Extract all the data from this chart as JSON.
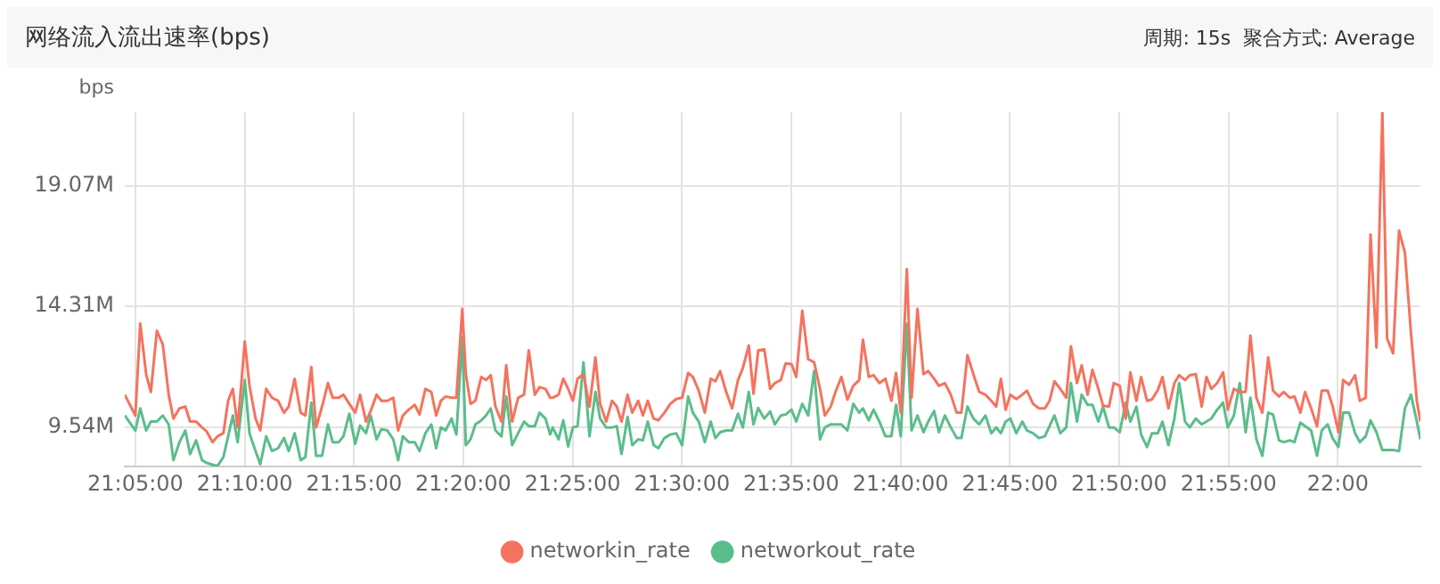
{
  "chart_data": {
    "type": "line",
    "title": "网络流入流出速率(bps)",
    "annotations": [
      "周期: 15s  聚合方式: Average"
    ],
    "ylabel": "bps",
    "x": [
      21.0752,
      21.0833,
      21.087,
      21.0915,
      21.0951,
      21.0997,
      21.1042,
      21.1087,
      21.1123,
      21.1169,
      21.1214,
      21.125,
      21.1296,
      21.1341,
      21.1377,
      21.1422,
      21.1459,
      21.1504,
      21.154,
      21.1576,
      21.1613,
      21.1667,
      21.1703,
      21.1749,
      21.1785,
      21.183,
      21.1875,
      21.1921,
      21.1966,
      21.2002,
      21.2047,
      21.2093,
      21.2129,
      21.2174,
      21.2211,
      21.2256,
      21.2301,
      21.2337,
      21.2383,
      21.2419,
      21.2464,
      21.2509,
      21.2546,
      21.2591,
      21.2627,
      21.2672,
      21.2709,
      21.2754,
      21.2799,
      21.2836,
      21.2872,
      21.2917,
      21.2963,
      21.2999,
      21.3044,
      21.3089,
      21.3126,
      21.3162,
      21.3198,
      21.3243,
      21.328,
      21.3325,
      21.3352,
      21.3388,
      21.3425,
      21.347,
      21.3506,
      21.3542,
      21.3578,
      21.3624,
      21.366,
      21.3705,
      21.3751,
      21.3796,
      21.3832,
      21.3878,
      21.3914,
      21.3959,
      21.3995,
      21.4014,
      21.4059,
      21.4095,
      21.4132,
      21.4168,
      21.4204,
      21.4249,
      21.4295,
      21.434,
      21.4376,
      21.4422,
      21.4467,
      21.4503,
      21.4539,
      21.4585,
      21.4621,
      21.4666,
      21.4702,
      21.4739,
      21.4784,
      21.482,
      21.4866,
      21.4911,
      21.4956,
      21.5001,
      21.5047,
      21.5083,
      21.5128,
      21.5174,
      21.5219,
      21.5255,
      21.5291,
      21.5337,
      21.5382,
      21.5427,
      21.5464,
      21.5509,
      21.5545,
      21.5581,
      21.5627,
      21.5672,
      21.5708,
      21.5753,
      21.579,
      21.5835,
      21.5871,
      21.5917,
      21.5962,
      21.6007,
      21.6052,
      21.6089,
      21.6134,
      21.617,
      21.6215,
      21.6261,
      21.6306,
      21.6351,
      21.6379,
      21.6424,
      21.646,
      21.6505,
      21.6551,
      21.6596,
      21.6632,
      21.6668,
      21.6714,
      21.675,
      21.6795,
      21.6841,
      21.6877,
      21.6922,
      21.6958,
      21.7004,
      21.7049,
      21.7094,
      21.713,
      21.7176,
      21.7221,
      21.7266,
      21.7313,
      21.7358,
      21.7395,
      21.7431,
      21.7467,
      21.7503,
      21.7549,
      21.7594,
      21.763,
      21.7676,
      21.7721,
      21.7766,
      21.7802,
      21.7839,
      21.7884,
      21.7929,
      21.7965,
      21.8011,
      21.8047,
      21.8092,
      21.8129,
      21.8174,
      21.821,
      21.8255,
      21.8292,
      21.8337,
      21.8382,
      21.8418,
      21.8464,
      21.85,
      21.8545,
      21.8582,
      21.8627,
      21.8663,
      21.8708,
      21.8754,
      21.879,
      21.8835,
      21.8871,
      21.8917,
      21.8962,
      21.8998,
      21.9035,
      21.908,
      21.9125,
      21.9161,
      21.9207,
      21.9252,
      21.9297,
      21.9333,
      21.9379,
      21.9424,
      21.9469,
      21.9506,
      21.9551,
      21.9587,
      21.9633,
      21.9669,
      21.9714,
      21.975,
      21.9796,
      21.9841,
      21.9877,
      21.9922,
      21.9959,
      22.0004,
      22.004,
      22.0086,
      22.0131,
      22.0167,
      22.0212,
      22.0249,
      22.0294,
      22.0339,
      22.0375,
      22.0421,
      22.0466,
      22.0511,
      22.0557,
      22.0602,
      22.0629
    ],
    "series": [
      {
        "name": "networkin_rate",
        "color": "#f5735e",
        "values": [
          10.83,
          10.01,
          13.63,
          11.64,
          10.94,
          13.35,
          12.81,
          10.83,
          9.89,
          10.29,
          10.36,
          9.77,
          9.77,
          9.54,
          9.38,
          8.96,
          9.19,
          9.31,
          10.59,
          11.06,
          9.54,
          12.93,
          11.18,
          9.89,
          9.42,
          11.06,
          10.71,
          10.59,
          10.12,
          10.36,
          11.46,
          10.12,
          10.01,
          11.92,
          9.54,
          10.36,
          11.29,
          10.71,
          10.71,
          10.83,
          10.47,
          10.12,
          10.83,
          9.77,
          10.19,
          10.83,
          10.59,
          10.59,
          10.71,
          9.42,
          10.01,
          10.24,
          10.43,
          10.05,
          11.06,
          10.94,
          10.01,
          10.59,
          10.76,
          10.71,
          10.71,
          14.21,
          11.64,
          10.47,
          10.59,
          11.53,
          11.41,
          11.6,
          10.36,
          9.77,
          11.99,
          9.77,
          10.71,
          10.83,
          12.58,
          10.83,
          11.13,
          11.06,
          10.71,
          10.71,
          10.83,
          11.46,
          11.06,
          10.59,
          11.46,
          11.64,
          10.36,
          12.3,
          10.47,
          9.77,
          10.59,
          10.36,
          9.77,
          10.83,
          10.12,
          10.59,
          10.01,
          10.59,
          9.89,
          9.82,
          10.12,
          10.47,
          10.66,
          10.71,
          11.69,
          11.53,
          10.99,
          10.12,
          11.46,
          11.36,
          11.76,
          10.94,
          10.29,
          11.41,
          11.88,
          12.77,
          10.87,
          12.58,
          12.62,
          11.06,
          11.29,
          11.41,
          12.06,
          12.04,
          11.53,
          14.14,
          12.23,
          12.11,
          11.06,
          10.01,
          10.36,
          10.94,
          11.53,
          10.64,
          11.18,
          11.41,
          13.0,
          11.53,
          11.6,
          11.29,
          11.46,
          10.59,
          11.69,
          10.12,
          15.78,
          10.71,
          14.21,
          11.64,
          11.76,
          11.46,
          11.18,
          11.29,
          10.83,
          10.12,
          10.12,
          12.39,
          11.64,
          10.94,
          10.83,
          10.59,
          10.36,
          11.46,
          10.24,
          10.83,
          10.66,
          10.83,
          10.99,
          10.47,
          10.29,
          10.29,
          10.59,
          11.36,
          11.06,
          10.71,
          12.74,
          11.29,
          11.99,
          10.83,
          11.81,
          11.06,
          10.4,
          10.36,
          11.29,
          11.18,
          9.89,
          11.71,
          10.59,
          11.53,
          10.59,
          10.64,
          11.01,
          11.53,
          10.29,
          11.29,
          11.6,
          11.41,
          11.6,
          11.64,
          10.36,
          11.53,
          11.06,
          11.29,
          11.71,
          10.24,
          11.06,
          10.94,
          10.94,
          13.16,
          10.71,
          10.12,
          12.3,
          10.99,
          10.76,
          10.94,
          10.71,
          10.76,
          10.12,
          10.94,
          10.29,
          9.59,
          10.99,
          10.99,
          10.4,
          9.35,
          11.41,
          11.22,
          11.6,
          10.59,
          10.71,
          17.14,
          12.69,
          21.97,
          13.05,
          12.46,
          17.3,
          16.43,
          13.28,
          10.59,
          9.77
        ]
      },
      {
        "name": "networkout_rate",
        "color": "#5bbd8b",
        "values": [
          10.01,
          9.42,
          10.29,
          9.42,
          9.77,
          9.77,
          10.01,
          9.66,
          8.25,
          8.96,
          9.42,
          8.49,
          9.03,
          8.25,
          8.14,
          8.07,
          8.02,
          8.37,
          9.19,
          10.01,
          8.96,
          11.41,
          9.31,
          8.61,
          8.09,
          9.19,
          8.61,
          8.72,
          9.12,
          8.61,
          9.31,
          8.25,
          8.37,
          10.52,
          8.42,
          8.42,
          9.66,
          8.96,
          8.96,
          9.19,
          10.08,
          8.89,
          9.61,
          9.31,
          10.01,
          9.07,
          9.47,
          9.42,
          9.07,
          8.25,
          9.19,
          8.96,
          8.96,
          8.61,
          9.31,
          9.66,
          8.72,
          9.54,
          9.42,
          9.89,
          9.26,
          13.09,
          8.84,
          9.07,
          9.66,
          9.82,
          10.01,
          10.29,
          9.42,
          9.19,
          10.76,
          8.84,
          9.31,
          9.77,
          9.59,
          9.59,
          10.12,
          9.89,
          9.26,
          9.54,
          9.07,
          9.82,
          8.79,
          9.54,
          9.59,
          12.11,
          9.19,
          10.94,
          9.89,
          9.54,
          9.54,
          9.59,
          8.49,
          9.96,
          8.84,
          9.07,
          9.03,
          9.77,
          8.84,
          8.72,
          9.12,
          9.26,
          9.31,
          8.84,
          10.76,
          10.12,
          9.77,
          8.96,
          9.77,
          9.12,
          9.35,
          9.42,
          9.42,
          10.08,
          9.54,
          10.94,
          9.66,
          10.31,
          9.89,
          10.17,
          9.66,
          10.01,
          10.05,
          10.24,
          9.77,
          10.47,
          10.01,
          11.76,
          9.07,
          9.54,
          9.66,
          9.66,
          9.66,
          9.42,
          10.47,
          10.12,
          10.29,
          9.82,
          10.24,
          9.77,
          9.19,
          9.19,
          10.43,
          9.19,
          13.63,
          9.42,
          10.01,
          9.35,
          9.77,
          10.19,
          9.35,
          10.01,
          9.54,
          9.12,
          9.12,
          10.36,
          9.89,
          9.66,
          10.01,
          9.31,
          9.54,
          9.31,
          9.77,
          9.89,
          9.31,
          9.77,
          9.42,
          9.31,
          9.12,
          9.19,
          9.59,
          10.01,
          9.31,
          9.54,
          11.29,
          9.77,
          10.83,
          10.43,
          10.43,
          9.77,
          10.36,
          9.54,
          9.54,
          9.35,
          10.52,
          9.77,
          10.36,
          9.26,
          8.77,
          9.31,
          9.31,
          9.77,
          8.84,
          9.89,
          11.29,
          9.77,
          9.54,
          9.89,
          9.66,
          9.77,
          9.89,
          10.24,
          10.52,
          9.54,
          10.01,
          11.29,
          9.35,
          10.71,
          9.07,
          8.42,
          10.12,
          10.05,
          9.03,
          8.96,
          9.03,
          8.96,
          9.73,
          9.59,
          9.42,
          8.42,
          9.42,
          9.66,
          9.12,
          8.77,
          10.12,
          10.12,
          9.31,
          8.96,
          9.19,
          9.82,
          9.35,
          8.65,
          8.65,
          8.65,
          8.61,
          10.29,
          10.83,
          9.77,
          9.07
        ]
      }
    ],
    "xlim": [
      21.0752,
      22.0629
    ],
    "xticks": [
      {
        "value": 21.0833,
        "label": "21:05:00"
      },
      {
        "value": 21.1667,
        "label": "21:10:00"
      },
      {
        "value": 21.25,
        "label": "21:15:00"
      },
      {
        "value": 21.3333,
        "label": "21:20:00"
      },
      {
        "value": 21.4167,
        "label": "21:25:00"
      },
      {
        "value": 21.5,
        "label": "21:30:00"
      },
      {
        "value": 21.5833,
        "label": "21:35:00"
      },
      {
        "value": 21.6667,
        "label": "21:40:00"
      },
      {
        "value": 21.75,
        "label": "21:45:00"
      },
      {
        "value": 21.8333,
        "label": "21:50:00"
      },
      {
        "value": 21.9167,
        "label": "21:55:00"
      },
      {
        "value": 22,
        "label": "22:00"
      }
    ],
    "ylim": [
      8,
      21.97
    ],
    "yticks": [
      {
        "value": 9.54,
        "label": "9.54M"
      },
      {
        "value": 14.31,
        "label": "14.31M"
      },
      {
        "value": 19.07,
        "label": "19.07M"
      }
    ],
    "grid": true,
    "legend": "bottom",
    "marker": "none",
    "line_style": "solid"
  }
}
